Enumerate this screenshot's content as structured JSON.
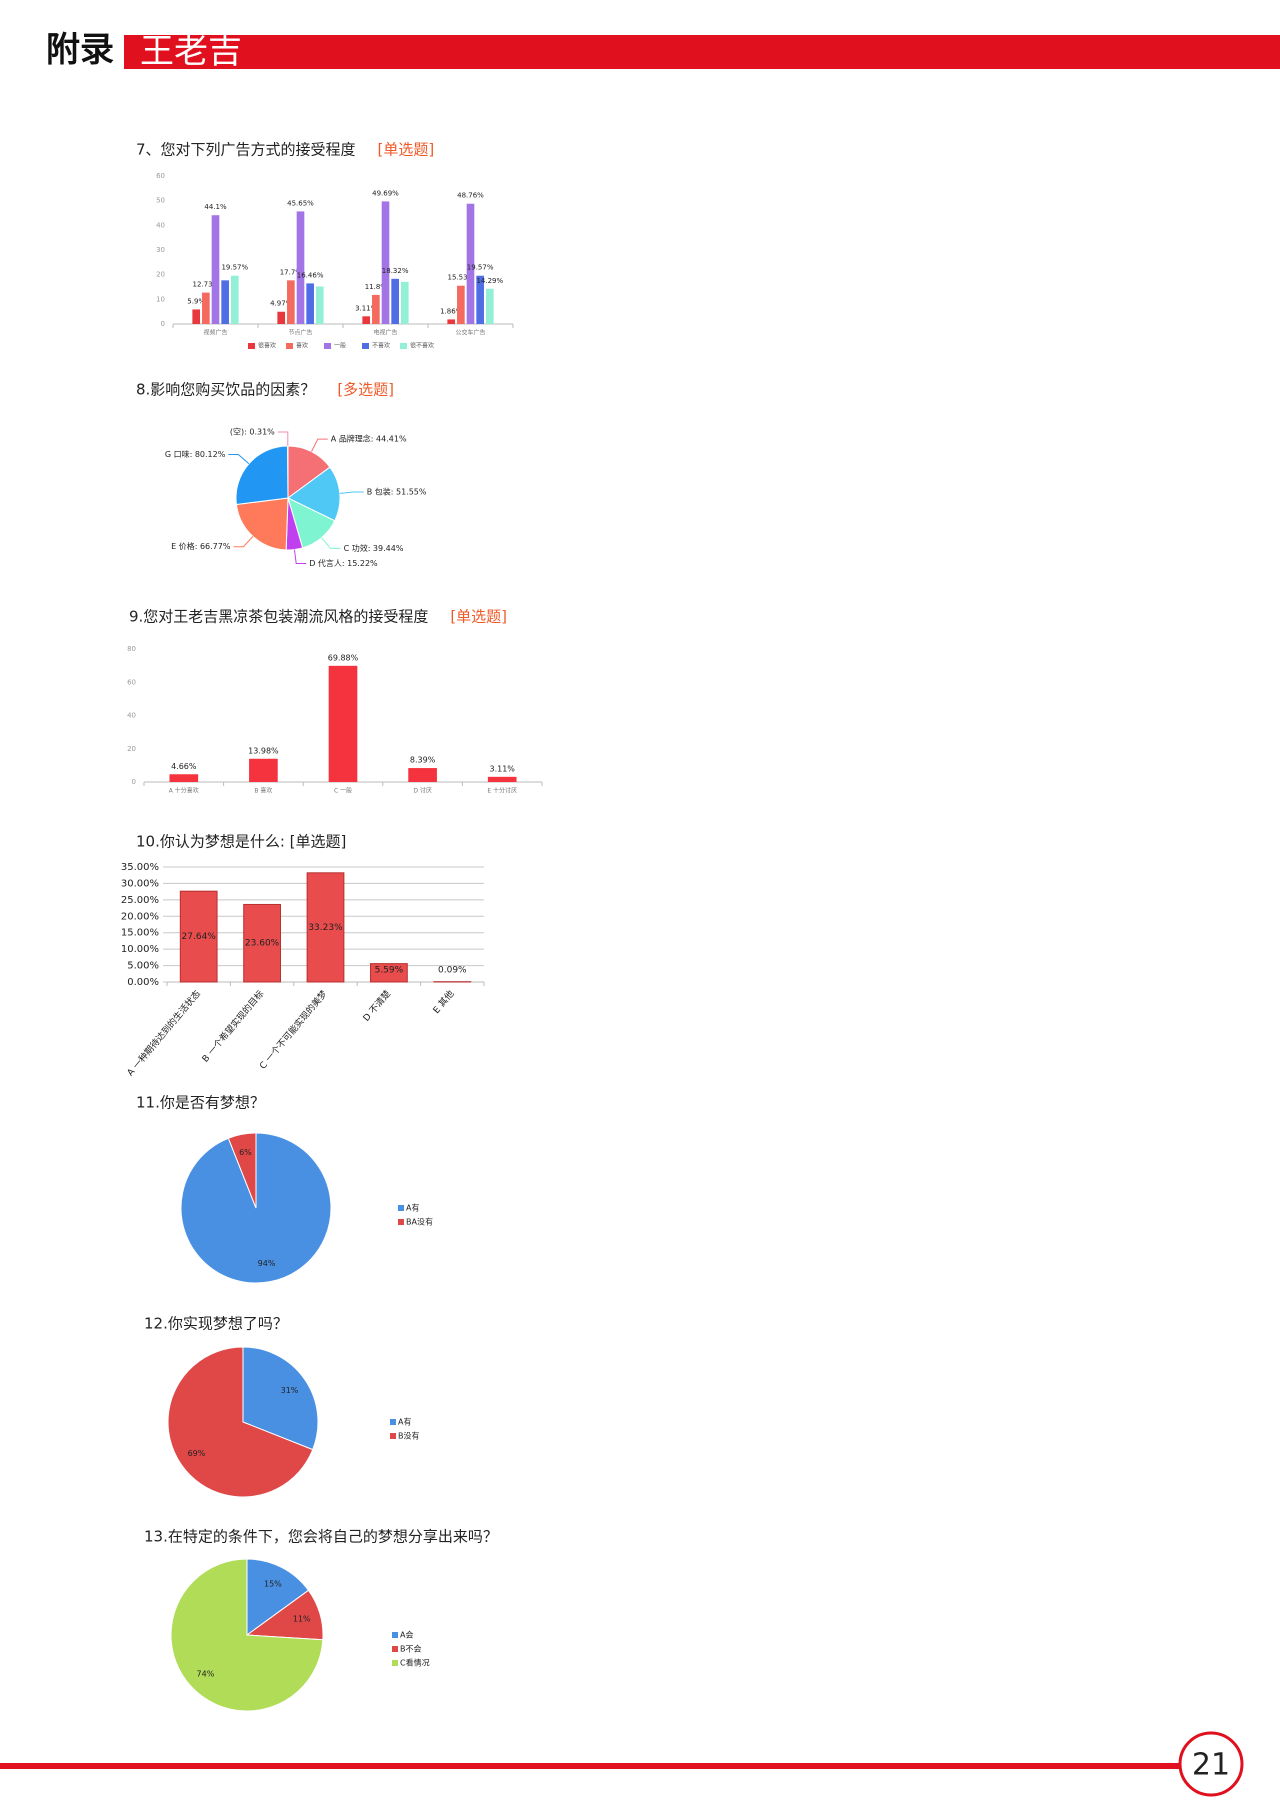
{
  "header": {
    "label": "附录",
    "title": "王老吉"
  },
  "chart_data": [
    {
      "type": "bar",
      "title": "7、您对下列广告方式的接受程度",
      "tag": "[单选题]",
      "categories": [
        "视频广告",
        "节点广告",
        "电视广告",
        "公交车广告"
      ],
      "series": [
        {
          "name": "很喜欢",
          "color": "#e8383d",
          "values": [
            5.9,
            4.97,
            3.11,
            1.86
          ],
          "value_labels": [
            "5.9%",
            "4.97%",
            "3.11%",
            "1.86%"
          ]
        },
        {
          "name": "喜欢",
          "color": "#f46a5e",
          "values": [
            12.73,
            17.7,
            11.8,
            15.53
          ],
          "value_labels": [
            "12.73%",
            "17.7%",
            "11.8%",
            "15.53%"
          ]
        },
        {
          "name": "一般",
          "color": "#a374e6",
          "values": [
            44.1,
            45.65,
            49.69,
            48.76
          ],
          "value_labels": [
            "44.1%",
            "45.65%",
            "49.69%",
            "48.76%"
          ]
        },
        {
          "name": "不喜欢",
          "color": "#4f6ee6",
          "values": [
            17.7,
            16.46,
            18.32,
            19.57
          ],
          "value_labels": [
            null,
            "16.46%",
            "18.32%",
            "19.57%"
          ]
        },
        {
          "name": "很不喜欢",
          "color": "#93f0d6",
          "values": [
            19.57,
            15.22,
            17.08,
            14.29
          ],
          "value_labels": [
            "19.57%",
            null,
            null,
            "14.29%"
          ]
        }
      ],
      "ylim": [
        0,
        60
      ],
      "yticks": [
        0,
        10,
        20,
        30,
        40,
        50,
        60
      ],
      "legend": "bottom"
    },
    {
      "type": "pie",
      "title": "8.影响您购买饮品的因素？",
      "tag": "[多选题]",
      "values": [
        44.41,
        51.55,
        39.44,
        15.22,
        66.77,
        80.12,
        0.31
      ],
      "value_labels": [
        "A 品牌理念: 44.41%",
        "B 包装: 51.55%",
        "C 功效: 39.44%",
        "D 代言人: 15.22%",
        "E 价格: 66.77%",
        "G 口味: 80.12%",
        "(空): 0.31%"
      ],
      "colors": [
        "#f47075",
        "#4fc8f5",
        "#7ef5d0",
        "#c040f0",
        "#ff7a5a",
        "#2196f3",
        "#f58ab0"
      ]
    },
    {
      "type": "bar",
      "title": "9.您对王老吉黑凉茶包装潮流风格的接受程度",
      "tag": "[单选题]",
      "categories": [
        "A 十分喜欢",
        "B 喜欢",
        "C 一般",
        "D 讨厌",
        "E 十分讨厌"
      ],
      "values": [
        4.66,
        13.98,
        69.88,
        8.39,
        3.11
      ],
      "value_labels": [
        "4.66%",
        "13.98%",
        "69.88%",
        "8.39%",
        "3.11%"
      ],
      "color": "#f5333f",
      "ylim": [
        0,
        80
      ],
      "yticks": [
        0,
        20,
        40,
        60,
        80
      ]
    },
    {
      "type": "bar",
      "title": "10.你认为梦想是什么: [单选题]",
      "categories": [
        "A 一种期待达到的生活状态",
        "B 一个希望实现的目标",
        "C 一个不可能实现的美梦",
        "D 不清楚",
        "E 其他"
      ],
      "values": [
        27.64,
        23.6,
        33.23,
        5.59,
        0.09
      ],
      "value_labels": [
        "27.64%",
        "23.60%",
        "33.23%",
        "5.59%",
        "0.09%"
      ],
      "color": "#e84c4c",
      "ylim": [
        0,
        35
      ],
      "yticks": [
        {
          "value": 0,
          "label": "0.00%"
        },
        {
          "value": 5,
          "label": "5.00%"
        },
        {
          "value": 10,
          "label": "10.00%"
        },
        {
          "value": 15,
          "label": "15.00%"
        },
        {
          "value": 20,
          "label": "20.00%"
        },
        {
          "value": 25,
          "label": "25.00%"
        },
        {
          "value": 30,
          "label": "30.00%"
        },
        {
          "value": 35,
          "label": "35.00%"
        }
      ],
      "grid": true
    },
    {
      "type": "pie",
      "title": "11.你是否有梦想？",
      "categories": [
        "A有",
        "BA没有"
      ],
      "values": [
        94,
        6
      ],
      "value_labels": [
        "94%",
        "6%"
      ],
      "colors": [
        "#4a90e2",
        "#e04848"
      ],
      "legend": "right"
    },
    {
      "type": "pie",
      "title": "12.你实现梦想了吗？",
      "categories": [
        "A有",
        "B没有"
      ],
      "values": [
        31,
        69
      ],
      "value_labels": [
        "31%",
        "69%"
      ],
      "colors": [
        "#4a90e2",
        "#e04848"
      ],
      "legend": "right"
    },
    {
      "type": "pie",
      "title": "13.在特定的条件下，您会将自己的梦想分享出来吗？",
      "categories": [
        "A会",
        "B不会",
        "C看情况"
      ],
      "values": [
        15,
        11,
        74
      ],
      "value_labels": [
        "15%",
        "11%",
        "74%"
      ],
      "colors": [
        "#4a90e2",
        "#e04848",
        "#b0dc58"
      ],
      "legend": "right"
    }
  ],
  "page_number": "21"
}
